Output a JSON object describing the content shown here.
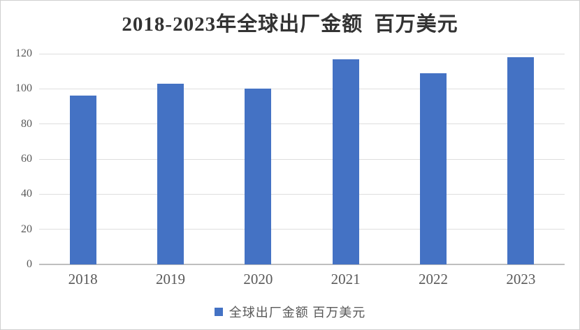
{
  "chart_data": {
    "type": "bar",
    "title": "2018-2023年全球出厂金额  百万美元",
    "categories": [
      "2018",
      "2019",
      "2020",
      "2021",
      "2022",
      "2023"
    ],
    "series": [
      {
        "name": "全球出厂金额 百万美元",
        "values": [
          96,
          103,
          100,
          117,
          109,
          118
        ]
      }
    ],
    "values": [
      96,
      103,
      100,
      117,
      109,
      118
    ],
    "xlabel": "",
    "ylabel": "",
    "ylim": [
      0,
      120
    ],
    "yticks": [
      0,
      20,
      40,
      60,
      80,
      100,
      120
    ],
    "grid": true,
    "legend_position": "bottom",
    "colors": {
      "bar": "#4472C4",
      "gridline": "#DEDEDE",
      "axis_line": "#BFBFBF",
      "tick_label": "#595959",
      "title": "#333333"
    }
  }
}
